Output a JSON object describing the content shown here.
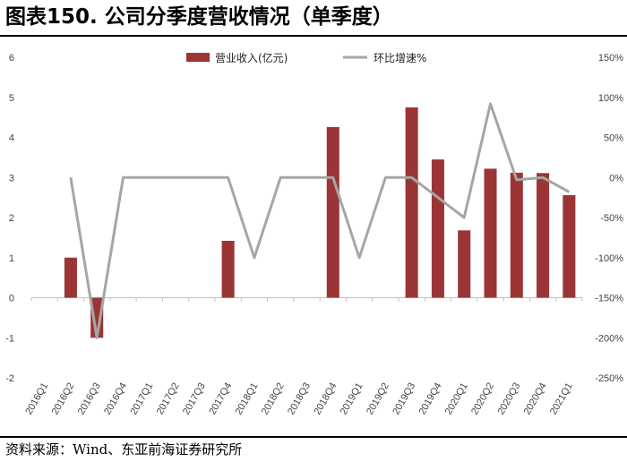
{
  "title": "图表150. 公司分季度营收情况（单季度）",
  "source": "资料来源：Wind、东亚前海证券研究所",
  "colors": {
    "bar": "#9B3535",
    "line": "#A6A6A6"
  },
  "chart_data": {
    "type": "bar",
    "categories": [
      "2016Q1",
      "2016Q2",
      "2016Q3",
      "2016Q4",
      "2017Q1",
      "2017Q2",
      "2017Q3",
      "2017Q4",
      "2018Q1",
      "2018Q2",
      "2018Q3",
      "2018Q4",
      "2019Q1",
      "2019Q2",
      "2019Q3",
      "2019Q4",
      "2020Q1",
      "2020Q2",
      "2020Q3",
      "2020Q4",
      "2021Q1"
    ],
    "series": [
      {
        "name": "营业收入(亿元)",
        "kind": "bar",
        "axis": "left",
        "values": [
          0,
          1.0,
          -1.0,
          0,
          0,
          0,
          0,
          1.42,
          0,
          0,
          0,
          4.26,
          0,
          0,
          4.75,
          3.45,
          1.68,
          3.22,
          3.12,
          3.11,
          2.56
        ]
      },
      {
        "name": "环比增速%",
        "kind": "line",
        "axis": "right",
        "values": [
          null,
          0,
          -200,
          0,
          0,
          0,
          0,
          0,
          -100,
          0,
          0,
          0,
          -100,
          0,
          0,
          -25,
          -50,
          92,
          -3,
          0,
          -18
        ]
      }
    ],
    "yleft": {
      "ticks": [
        "6",
        "5",
        "4",
        "3",
        "2",
        "1",
        "0",
        "-1",
        "-2"
      ],
      "lim": [
        -2,
        6
      ]
    },
    "yright": {
      "ticks": [
        "150%",
        "100%",
        "50%",
        "0%",
        "-50%",
        "-100%",
        "-150%",
        "-200%",
        "-250%"
      ],
      "lim": [
        -250,
        150
      ]
    },
    "legend": "top",
    "grid": false
  }
}
